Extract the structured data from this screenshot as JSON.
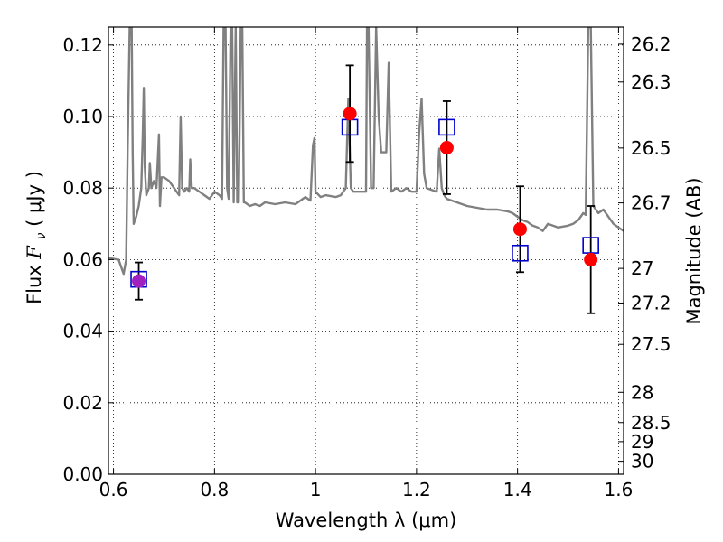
{
  "chart_data": {
    "type": "scatter",
    "xlabel": "Wavelength  λ (μm)",
    "ylabel_prefix": "Flux ",
    "ylabel_symbol": "F",
    "ylabel_sub": "ν",
    "ylabel_unit": "  ( μJy )",
    "y2label": "Magnitude (AB)",
    "xlim": [
      0.59,
      1.61
    ],
    "ylim": [
      0.0,
      0.125
    ],
    "grid": true,
    "xticks": [
      0.6,
      0.8,
      1.0,
      1.2,
      1.4,
      1.6
    ],
    "xtick_labels": [
      "0.6",
      "0.8",
      "1",
      "1.2",
      "1.4",
      "1.6"
    ],
    "yticks": [
      0.0,
      0.02,
      0.04,
      0.06,
      0.08,
      0.1,
      0.12
    ],
    "ytick_labels": [
      "0.00",
      "0.02",
      "0.04",
      "0.06",
      "0.08",
      "0.10",
      "0.12"
    ],
    "mag_ticks": [
      "26.2",
      "26.3",
      "26.5",
      "26.7",
      "27",
      "27.2",
      "27.5",
      "28",
      "28.5",
      "29",
      "30"
    ],
    "colors": {
      "model": "#808080",
      "observed": "#ff0000",
      "synthetic": "#0000cc",
      "overlap": "#a020c0",
      "errorbar": "#000000"
    },
    "series": [
      {
        "kind": "points",
        "marker": "circle",
        "x": [
          0.65,
          1.068,
          1.26,
          1.405,
          1.545
        ],
        "y": [
          0.054,
          0.1008,
          0.0913,
          0.0685,
          0.06
        ],
        "yerr": [
          0.0052,
          0.0135,
          0.013,
          0.012,
          0.015
        ]
      },
      {
        "kind": "points",
        "marker": "square",
        "x": [
          0.65,
          1.068,
          1.26,
          1.405,
          1.545
        ],
        "y": [
          0.0545,
          0.097,
          0.097,
          0.0618,
          0.064
        ]
      },
      {
        "kind": "line",
        "x": [
          0.59,
          0.6,
          0.61,
          0.62,
          0.625,
          0.628,
          0.632,
          0.634,
          0.636,
          0.638,
          0.64,
          0.645,
          0.65,
          0.655,
          0.658,
          0.66,
          0.662,
          0.665,
          0.67,
          0.672,
          0.675,
          0.68,
          0.685,
          0.69,
          0.692,
          0.695,
          0.7,
          0.71,
          0.72,
          0.73,
          0.733,
          0.736,
          0.74,
          0.745,
          0.75,
          0.752,
          0.755,
          0.76,
          0.77,
          0.78,
          0.79,
          0.8,
          0.81,
          0.815,
          0.818,
          0.822,
          0.825,
          0.828,
          0.832,
          0.835,
          0.838,
          0.842,
          0.845,
          0.848,
          0.852,
          0.855,
          0.858,
          0.86,
          0.87,
          0.88,
          0.89,
          0.9,
          0.92,
          0.94,
          0.96,
          0.98,
          0.99,
          0.995,
          0.998,
          1.0,
          1.01,
          1.02,
          1.04,
          1.05,
          1.06,
          1.065,
          1.07,
          1.075,
          1.08,
          1.1,
          1.102,
          1.105,
          1.11,
          1.115,
          1.12,
          1.125,
          1.13,
          1.14,
          1.145,
          1.15,
          1.16,
          1.17,
          1.18,
          1.19,
          1.2,
          1.205,
          1.21,
          1.215,
          1.22,
          1.24,
          1.245,
          1.25,
          1.255,
          1.26,
          1.28,
          1.3,
          1.32,
          1.34,
          1.36,
          1.38,
          1.39,
          1.4,
          1.41,
          1.42,
          1.43,
          1.44,
          1.45,
          1.46,
          1.48,
          1.5,
          1.51,
          1.52,
          1.525,
          1.53,
          1.535,
          1.54,
          1.545,
          1.55,
          1.56,
          1.57,
          1.58,
          1.59,
          1.6,
          1.61
        ],
        "y": [
          0.0605,
          0.0602,
          0.06,
          0.056,
          0.06,
          0.09,
          0.125,
          0.125,
          0.125,
          0.09,
          0.07,
          0.072,
          0.075,
          0.08,
          0.095,
          0.108,
          0.086,
          0.078,
          0.08,
          0.087,
          0.08,
          0.082,
          0.08,
          0.095,
          0.075,
          0.083,
          0.083,
          0.082,
          0.08,
          0.078,
          0.1,
          0.08,
          0.079,
          0.08,
          0.079,
          0.088,
          0.08,
          0.08,
          0.079,
          0.078,
          0.077,
          0.079,
          0.078,
          0.077,
          0.125,
          0.125,
          0.08,
          0.077,
          0.125,
          0.125,
          0.076,
          0.125,
          0.076,
          0.076,
          0.125,
          0.125,
          0.076,
          0.076,
          0.075,
          0.0755,
          0.075,
          0.076,
          0.0755,
          0.076,
          0.0755,
          0.0775,
          0.0765,
          0.092,
          0.094,
          0.079,
          0.0775,
          0.078,
          0.0775,
          0.078,
          0.08,
          0.105,
          0.08,
          0.079,
          0.079,
          0.079,
          0.125,
          0.125,
          0.08,
          0.08,
          0.125,
          0.1,
          0.09,
          0.09,
          0.115,
          0.079,
          0.08,
          0.079,
          0.08,
          0.079,
          0.079,
          0.095,
          0.105,
          0.084,
          0.08,
          0.079,
          0.091,
          0.08,
          0.078,
          0.077,
          0.076,
          0.075,
          0.0745,
          0.074,
          0.074,
          0.0735,
          0.073,
          0.072,
          0.071,
          0.0705,
          0.0695,
          0.069,
          0.068,
          0.07,
          0.069,
          0.0695,
          0.07,
          0.071,
          0.072,
          0.073,
          0.0725,
          0.125,
          0.125,
          0.075,
          0.073,
          0.074,
          0.072,
          0.07,
          0.069,
          0.068
        ]
      }
    ]
  }
}
